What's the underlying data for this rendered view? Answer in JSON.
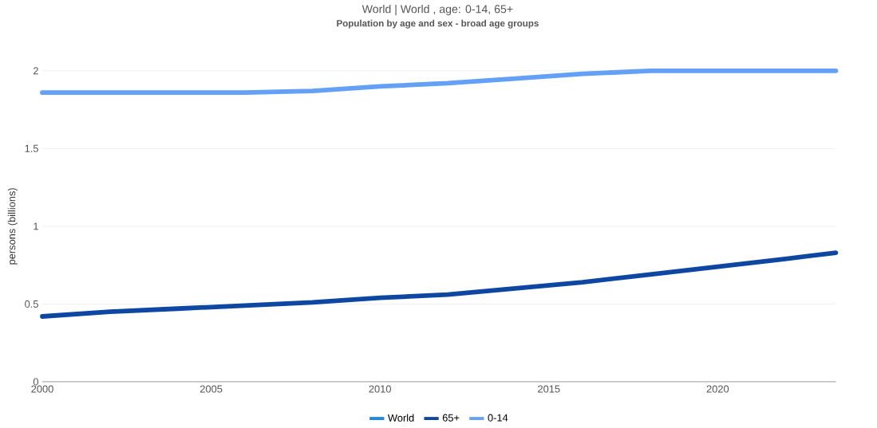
{
  "chart_data": {
    "type": "line",
    "title": "World  | World , age: 0-14, 65+",
    "subtitle": "**Population by age and sex - broad age groups**",
    "ylabel": "persons (billions)",
    "x": [
      2000,
      2002,
      2004,
      2006,
      2008,
      2010,
      2012,
      2014,
      2016,
      2018,
      2020,
      2022,
      2023.5
    ],
    "series": [
      {
        "name": "World",
        "color": "#1e88e5",
        "values": [
          null,
          null,
          null,
          null,
          null,
          null,
          null,
          null,
          null,
          null,
          null,
          null,
          null
        ]
      },
      {
        "name": "65+",
        "color": "#0d47a1",
        "values": [
          0.42,
          0.45,
          0.47,
          0.49,
          0.51,
          0.54,
          0.56,
          0.6,
          0.64,
          0.69,
          0.74,
          0.79,
          0.83
        ]
      },
      {
        "name": "0-14",
        "color": "#64a0f5",
        "values": [
          1.86,
          1.86,
          1.86,
          1.86,
          1.87,
          1.9,
          1.92,
          1.95,
          1.98,
          2.0,
          2.0,
          2.0,
          2.0
        ]
      }
    ],
    "xlim": [
      2000,
      2023.5
    ],
    "xticks": [
      2000,
      2005,
      2010,
      2015,
      2020
    ],
    "ylim": [
      0,
      2
    ],
    "yticks": [
      0,
      0.5,
      1,
      1.5,
      2
    ],
    "grid": "y",
    "legend": "bottom",
    "marker": "none",
    "line_style": "solid"
  }
}
